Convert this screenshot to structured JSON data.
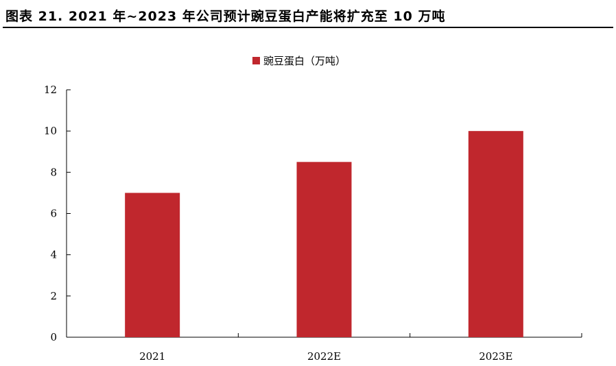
{
  "header": {
    "title": "图表 21. 2021 年~2023 年公司预计豌豆蛋白产能将扩充至 10 万吨"
  },
  "chart_data": {
    "type": "bar",
    "categories": [
      "2021",
      "2022E",
      "2023E"
    ],
    "series": [
      {
        "name": "豌豆蛋白（万吨）",
        "values": [
          7,
          8.5,
          10
        ],
        "color": "#C0272D"
      }
    ],
    "yticks": [
      "0",
      "2",
      "4",
      "6",
      "8",
      "10",
      "12"
    ],
    "ylim": [
      0,
      12
    ],
    "grid": false,
    "legend_position": "top-center",
    "title": "",
    "xlabel": "",
    "ylabel": ""
  }
}
